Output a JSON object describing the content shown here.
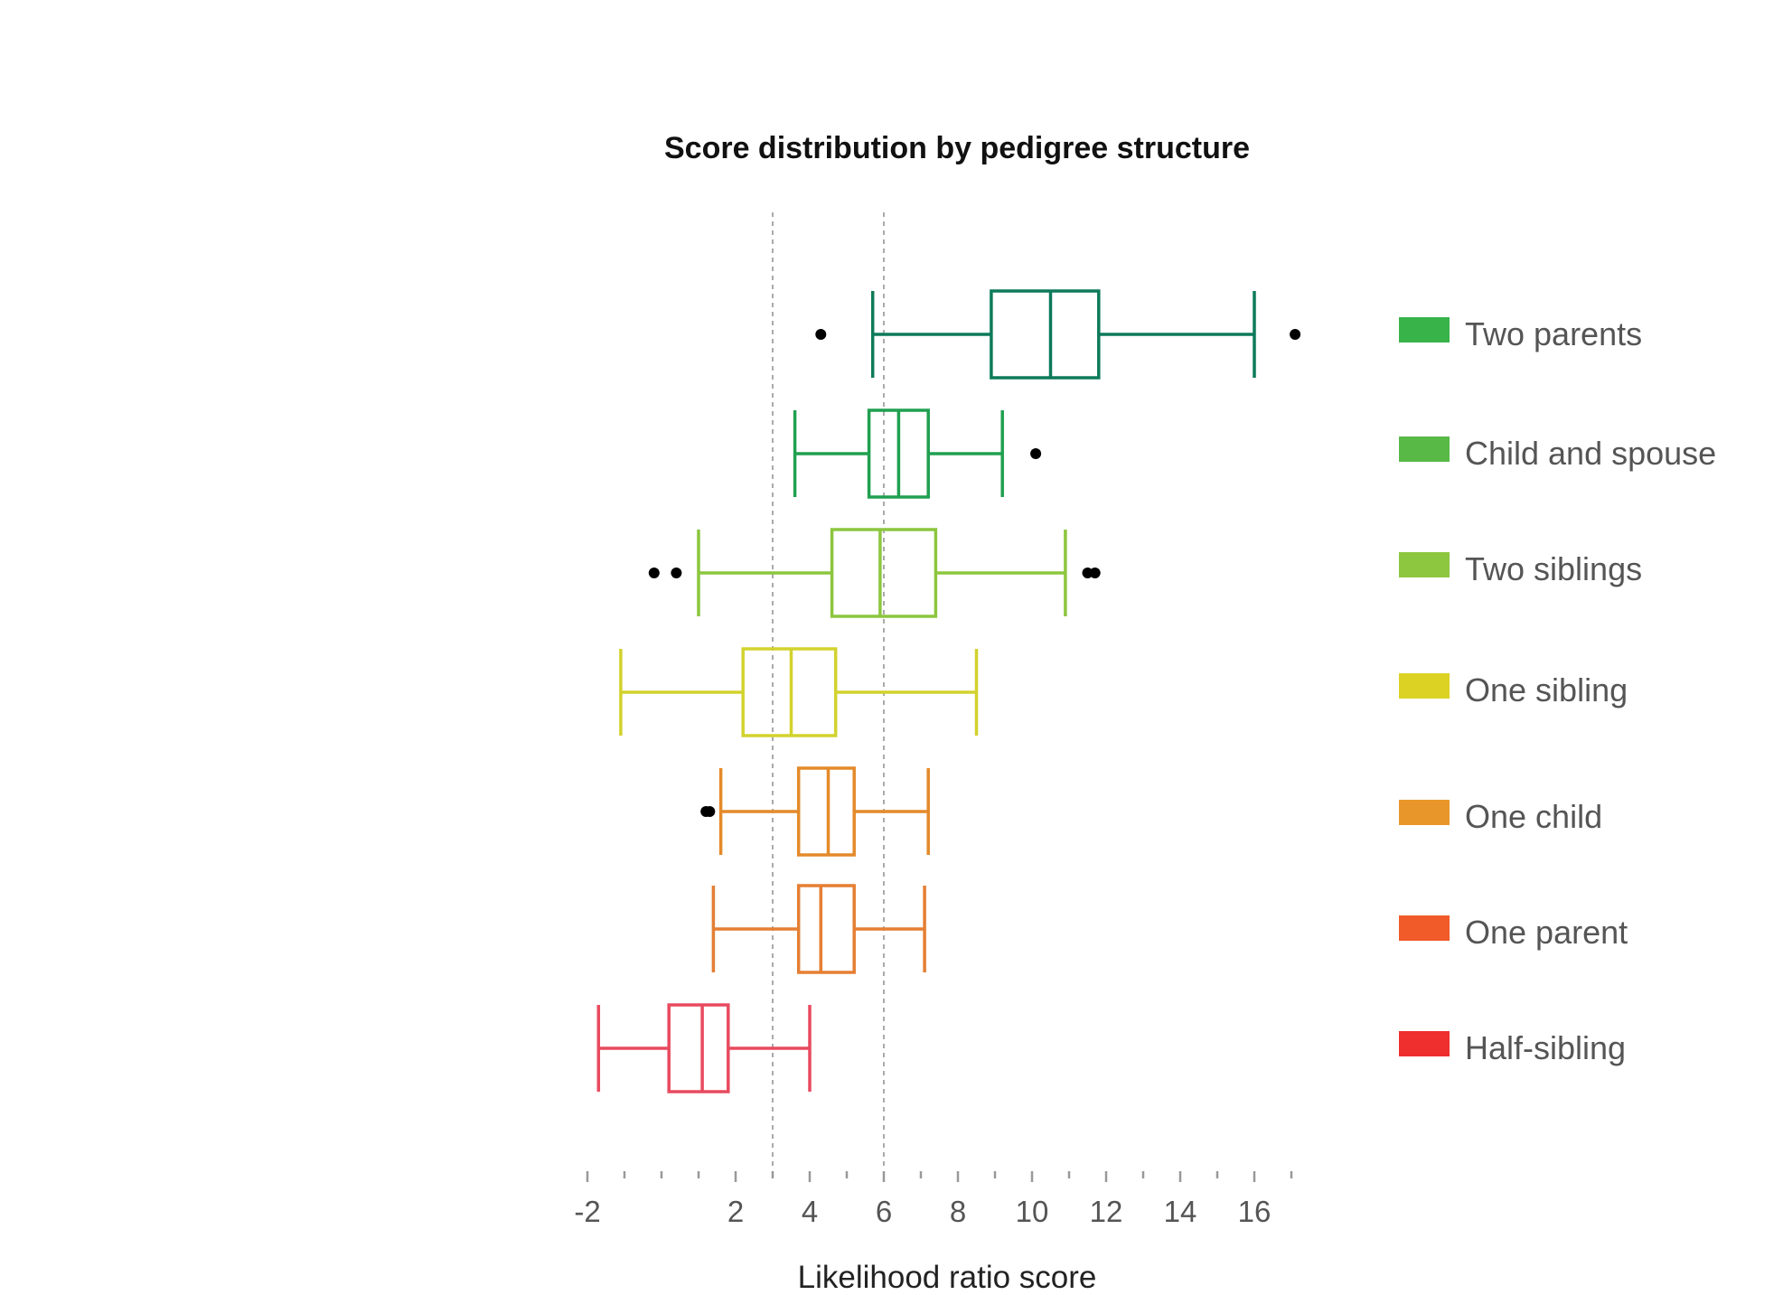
{
  "chart_data": {
    "type": "boxplot",
    "title": "Score distribution by pedigree structure",
    "xlabel": "Likelihood ratio score",
    "xlim": [
      -2,
      18
    ],
    "x_ticks": [
      -2,
      2,
      4,
      6,
      8,
      10,
      12,
      14,
      16
    ],
    "x_minor_ticks": [
      -1,
      0,
      1,
      3,
      5,
      7,
      9,
      11,
      13,
      15,
      17
    ],
    "reference_lines": [
      3,
      6
    ],
    "legend_position": "right",
    "series": [
      {
        "name": "Two parents",
        "color": "#0d7a5a",
        "legend_color": "#38b34a",
        "whisker_low": 5.7,
        "q1": 8.9,
        "median": 10.5,
        "q3": 11.8,
        "whisker_high": 16.0,
        "outliers": [
          4.3,
          17.1
        ]
      },
      {
        "name": "Child and spouse",
        "color": "#20a050",
        "legend_color": "#58b947",
        "whisker_low": 3.6,
        "q1": 5.6,
        "median": 6.4,
        "q3": 7.2,
        "whisker_high": 9.2,
        "outliers": [
          10.1
        ]
      },
      {
        "name": "Two siblings",
        "color": "#8cc63e",
        "legend_color": "#8dc63f",
        "whisker_low": 1.0,
        "q1": 4.6,
        "median": 5.9,
        "q3": 7.4,
        "whisker_high": 10.9,
        "outliers": [
          -0.2,
          0.4,
          11.5,
          11.7
        ]
      },
      {
        "name": "One sibling",
        "color": "#d2d22e",
        "legend_color": "#dcd223",
        "whisker_low": -1.1,
        "q1": 2.2,
        "median": 3.5,
        "q3": 4.7,
        "whisker_high": 8.5,
        "outliers": []
      },
      {
        "name": "One child",
        "color": "#e48a2a",
        "legend_color": "#e8962a",
        "whisker_low": 1.6,
        "q1": 3.7,
        "median": 4.5,
        "q3": 5.2,
        "whisker_high": 7.2,
        "outliers": [
          1.2,
          1.3
        ]
      },
      {
        "name": "One parent",
        "color": "#e57f33",
        "legend_color": "#f15a29",
        "whisker_low": 1.4,
        "q1": 3.7,
        "median": 4.3,
        "q3": 5.2,
        "whisker_high": 7.1,
        "outliers": []
      },
      {
        "name": "Half-sibling",
        "color": "#e84a5f",
        "legend_color": "#ef2e2e",
        "whisker_low": -1.7,
        "q1": 0.2,
        "median": 1.1,
        "q3": 1.8,
        "whisker_high": 4.0,
        "outliers": []
      }
    ]
  }
}
